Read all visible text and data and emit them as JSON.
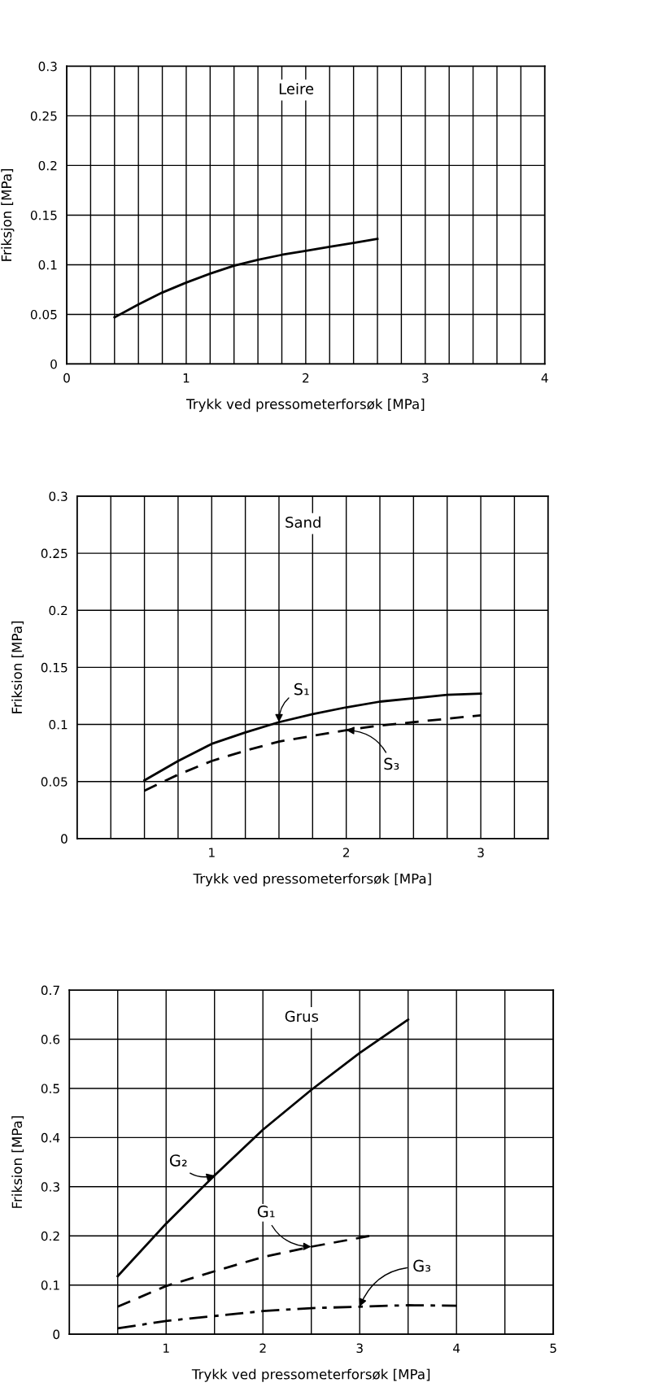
{
  "chart_data": [
    {
      "type": "line",
      "title": "Leire",
      "xlabel": "Trykk ved pressometerforsøk [MPa]",
      "ylabel": "Friksjon [MPa]",
      "grid": true,
      "legend": false,
      "marker": "none",
      "xlim": [
        0,
        4
      ],
      "ylim": [
        0,
        0.3
      ],
      "xticks": [
        0,
        {
          "value": 0.2,
          "label": null
        },
        {
          "value": 0.4,
          "label": null
        },
        {
          "value": 0.6,
          "label": null
        },
        {
          "value": 0.8,
          "label": null
        },
        1,
        {
          "value": 1.2,
          "label": null
        },
        {
          "value": 1.4,
          "label": null
        },
        {
          "value": 1.6,
          "label": null
        },
        {
          "value": 1.8,
          "label": null
        },
        2,
        {
          "value": 2.2,
          "label": null
        },
        {
          "value": 2.4,
          "label": null
        },
        {
          "value": 2.6,
          "label": null
        },
        {
          "value": 2.8,
          "label": null
        },
        3,
        {
          "value": 3.2,
          "label": null
        },
        {
          "value": 3.4,
          "label": null
        },
        {
          "value": 3.6,
          "label": null
        },
        {
          "value": 3.8,
          "label": null
        },
        4
      ],
      "yticks": [
        0,
        0.05,
        0.1,
        0.15,
        0.2,
        0.25,
        0.3
      ],
      "series": [
        {
          "color": "#000000",
          "line_style": "solid",
          "x": [
            0.4,
            0.6,
            0.8,
            1.0,
            1.2,
            1.4,
            1.6,
            1.8,
            2.0,
            2.2,
            2.4,
            2.6
          ],
          "values": [
            0.047,
            0.06,
            0.072,
            0.082,
            0.091,
            0.099,
            0.105,
            0.11,
            0.114,
            0.118,
            0.122,
            0.126
          ]
        }
      ]
    },
    {
      "type": "line",
      "title": "Sand",
      "xlabel": "Trykk ved pressometerforsøk [MPa]",
      "ylabel": "Friksion [MPa]",
      "grid": true,
      "legend": false,
      "marker": "none",
      "xlim": [
        0,
        3.5
      ],
      "ylim": [
        0,
        0.3
      ],
      "xticks": [
        {
          "value": 0.25,
          "label": null
        },
        {
          "value": 0.5,
          "label": null
        },
        {
          "value": 0.75,
          "label": null
        },
        1,
        {
          "value": 1.25,
          "label": null
        },
        {
          "value": 1.5,
          "label": null
        },
        {
          "value": 1.75,
          "label": null
        },
        2,
        {
          "value": 2.25,
          "label": null
        },
        {
          "value": 2.5,
          "label": null
        },
        {
          "value": 2.75,
          "label": null
        },
        3,
        {
          "value": 3.25,
          "label": null
        }
      ],
      "yticks": [
        0,
        0.05,
        0.1,
        0.15,
        0.2,
        0.25,
        0.3
      ],
      "series": [
        {
          "name": "S₁",
          "color": "#000000",
          "line_style": "solid",
          "x": [
            0.5,
            0.75,
            1.0,
            1.25,
            1.5,
            1.75,
            2.0,
            2.25,
            2.5,
            2.75,
            3.0
          ],
          "values": [
            0.051,
            0.068,
            0.083,
            0.093,
            0.102,
            0.109,
            0.115,
            0.12,
            0.123,
            0.126,
            0.127
          ]
        },
        {
          "name": "S₃",
          "color": "#000000",
          "line_style": "dashed",
          "x": [
            0.5,
            0.75,
            1.0,
            1.25,
            1.5,
            1.75,
            2.0,
            2.25,
            2.5,
            2.75,
            3.0
          ],
          "values": [
            0.042,
            0.056,
            0.068,
            0.077,
            0.085,
            0.09,
            0.095,
            0.099,
            0.102,
            0.105,
            0.108
          ]
        }
      ]
    },
    {
      "type": "line",
      "title": "Grus",
      "xlabel": "Trykk ved pressometerforsøk [MPa]",
      "ylabel": "Friksion [MPa]",
      "grid": true,
      "legend": false,
      "marker": "none",
      "xlim": [
        0,
        5
      ],
      "ylim": [
        0,
        0.7
      ],
      "xticks": [
        {
          "value": 0.5,
          "label": null
        },
        1,
        {
          "value": 1.5,
          "label": null
        },
        2,
        {
          "value": 2.5,
          "label": null
        },
        3,
        {
          "value": 3.5,
          "label": null
        },
        4,
        {
          "value": 4.5,
          "label": null
        },
        5
      ],
      "yticks": [
        0,
        0.1,
        0.2,
        0.3,
        0.4,
        0.5,
        0.6,
        0.7
      ],
      "series": [
        {
          "name": "G₂",
          "color": "#000000",
          "line_style": "solid",
          "x": [
            0.5,
            1.0,
            1.5,
            2.0,
            2.5,
            3.0,
            3.5
          ],
          "values": [
            0.118,
            0.225,
            0.323,
            0.416,
            0.497,
            0.572,
            0.64
          ]
        },
        {
          "name": "G₁",
          "color": "#000000",
          "line_style": "dashed",
          "x": [
            0.5,
            1.0,
            1.5,
            2.0,
            2.5,
            3.0,
            3.1
          ],
          "values": [
            0.056,
            0.098,
            0.128,
            0.157,
            0.178,
            0.196,
            0.2
          ]
        },
        {
          "name": "G₃",
          "color": "#000000",
          "line_style": "dashdot",
          "x": [
            0.5,
            1.0,
            1.5,
            2.0,
            2.5,
            3.0,
            3.5,
            4.0
          ],
          "values": [
            0.012,
            0.027,
            0.037,
            0.047,
            0.053,
            0.056,
            0.059,
            0.058
          ]
        }
      ]
    }
  ]
}
